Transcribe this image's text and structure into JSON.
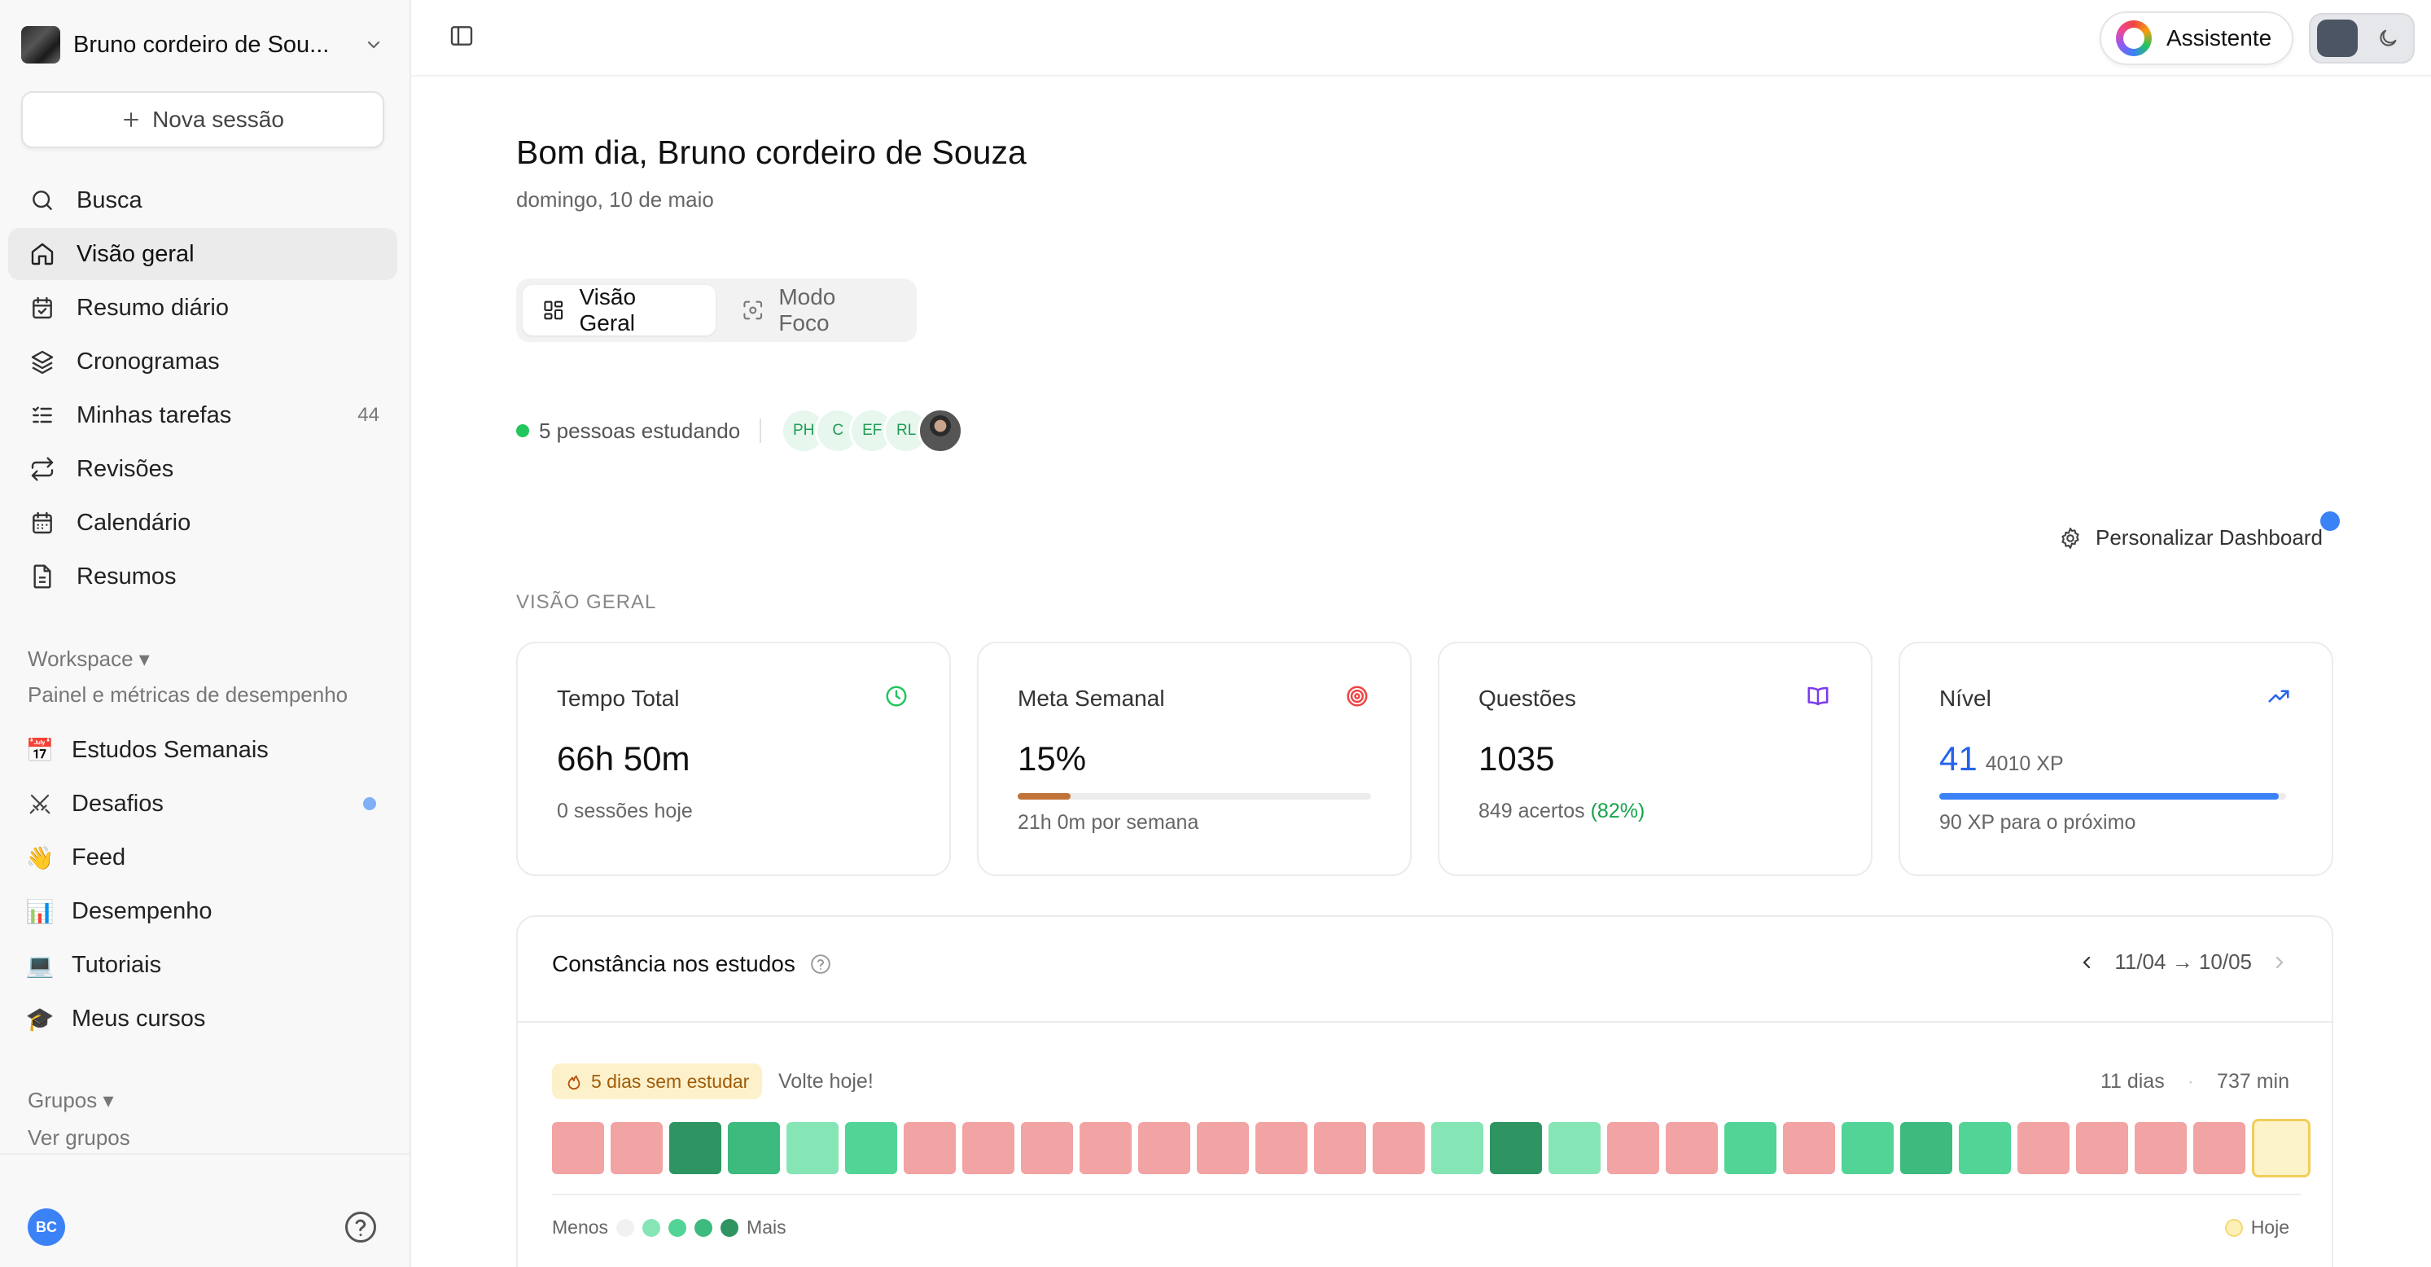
{
  "sidebar": {
    "workspace_name": "Bruno cordeiro de Sou...",
    "new_session": "Nova sessão",
    "nav": [
      {
        "label": "Busca",
        "icon": "search-icon"
      },
      {
        "label": "Visão geral",
        "icon": "home-icon",
        "active": true
      },
      {
        "label": "Resumo diário",
        "icon": "calendar-check-icon"
      },
      {
        "label": "Cronogramas",
        "icon": "layers-icon"
      },
      {
        "label": "Minhas tarefas",
        "icon": "list-todo-icon",
        "count": "44"
      },
      {
        "label": "Revisões",
        "icon": "repeat-icon"
      },
      {
        "label": "Calendário",
        "icon": "calendar-icon"
      },
      {
        "label": "Resumos",
        "icon": "file-text-icon"
      }
    ],
    "workspace_section": "Workspace ▾",
    "workspace_subtitle": "Painel e métricas de desempenho",
    "workspace_items": [
      {
        "label": "Estudos Semanais",
        "emoji": "📅"
      },
      {
        "label": "Desafios",
        "emoji": "⚔",
        "dot": true
      },
      {
        "label": "Feed",
        "emoji": "👋"
      },
      {
        "label": "Desempenho",
        "emoji": "📊"
      },
      {
        "label": "Tutoriais",
        "emoji": "💻"
      },
      {
        "label": "Meus cursos",
        "emoji": "🎓"
      }
    ],
    "groups_section": "Grupos ▾",
    "groups_link": "Ver grupos",
    "user_initials": "BC"
  },
  "topbar": {
    "assistant_label": "Assistente"
  },
  "main": {
    "greeting": "Bom dia, Bruno cordeiro de Souza",
    "date": "domingo, 10 de maio",
    "tabs": [
      {
        "label": "Visão Geral",
        "active": true
      },
      {
        "label": "Modo Foco",
        "active": false
      }
    ],
    "presence_text": "5 pessoas estudando",
    "presence_avatars": [
      "PH",
      "C",
      "EF",
      "RL"
    ],
    "customize_label": "Personalizar Dashboard",
    "section_label": "VISÃO GERAL"
  },
  "cards": {
    "tempo": {
      "title": "Tempo Total",
      "value": "66h 50m",
      "sub": "0 sessões hoje"
    },
    "meta": {
      "title": "Meta Semanal",
      "value": "15%",
      "sub": "21h 0m por semana",
      "progress": 0.15
    },
    "questoes": {
      "title": "Questões",
      "value": "1035",
      "sub_prefix": "849 acertos",
      "sub_pct": "(82%)"
    },
    "nivel": {
      "title": "Nível",
      "level": "41",
      "xp": "4010 XP",
      "sub": "90 XP para o próximo",
      "progress": 0.98
    }
  },
  "consistency": {
    "title": "Constância nos estudos",
    "range": "11/04 → 10/05",
    "streak_badge": "5 dias sem estudar",
    "back_text": "Volte hoje!",
    "days": "11 dias",
    "minutes": "737 min",
    "legend_less": "Menos",
    "legend_more": "Mais",
    "legend_today": "Hoje",
    "cells": [
      "none",
      "none",
      "high",
      "mid",
      "low",
      "midlow",
      "none",
      "none",
      "none",
      "none",
      "none",
      "none",
      "none",
      "none",
      "none",
      "low",
      "high",
      "low",
      "none",
      "none",
      "midlow",
      "none",
      "midlow",
      "mid",
      "midlow",
      "none",
      "none",
      "none",
      "none",
      "today"
    ],
    "colors": {
      "none": "#f2a3a3",
      "low": "#86e5b5",
      "midlow": "#52d496",
      "mid": "#3dba7d",
      "high": "#2e9462",
      "today": "#fdf3c8"
    }
  }
}
